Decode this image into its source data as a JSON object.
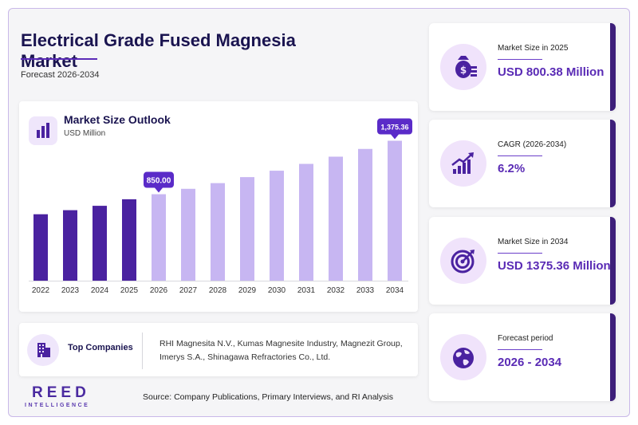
{
  "header": {
    "title": "Electrical Grade Fused Magnesia Market",
    "subtitle": "Forecast 2026-2034"
  },
  "chart_card": {
    "title": "Market Size Outlook",
    "unit": "USD Million"
  },
  "chart_data": {
    "type": "bar",
    "title": "Market Size Outlook",
    "ylabel": "USD Million",
    "categories": [
      "2022",
      "2023",
      "2024",
      "2025",
      "2026",
      "2027",
      "2028",
      "2029",
      "2030",
      "2031",
      "2032",
      "2033",
      "2034"
    ],
    "values": [
      653,
      693,
      736,
      800.38,
      850.0,
      903,
      959,
      1018,
      1081,
      1148,
      1219,
      1295,
      1375.36
    ],
    "historical_until": "2025",
    "ylim": [
      0,
      1450
    ],
    "grid": false,
    "callouts": [
      {
        "category": "2026",
        "label": "850.00"
      },
      {
        "category": "2034",
        "label": "1,375.36"
      }
    ],
    "colors": {
      "historical": "#4a22a0",
      "forecast": "#c7b6f2",
      "callout": "#5a2bc8"
    }
  },
  "companies": {
    "title": "Top Companies",
    "text": "RHI Magnesita N.V., Kumas Magnesite Industry, Magnezit Group, Imerys S.A., Shinagawa Refractories Co., Ltd."
  },
  "stats": [
    {
      "label": "Market Size in 2025",
      "value": "USD 800.38 Million",
      "icon": "money-bag-icon"
    },
    {
      "label": "CAGR (2026-2034)",
      "value": "6.2%",
      "icon": "growth-chart-icon"
    },
    {
      "label": "Market Size in 2034",
      "value": "USD 1375.36 Million",
      "icon": "target-icon"
    },
    {
      "label": "Forecast period",
      "value": "2026 - 2034",
      "icon": "globe-icon"
    }
  ],
  "footer": {
    "logo_main": "REED",
    "logo_sub": "INTELLIGENCE",
    "source": "Source: Company Publications, Primary Interviews, and RI Analysis"
  },
  "colors": {
    "accent": "#5a2bb5",
    "dark": "#1a1450",
    "card_border": "#3d1f7a"
  }
}
